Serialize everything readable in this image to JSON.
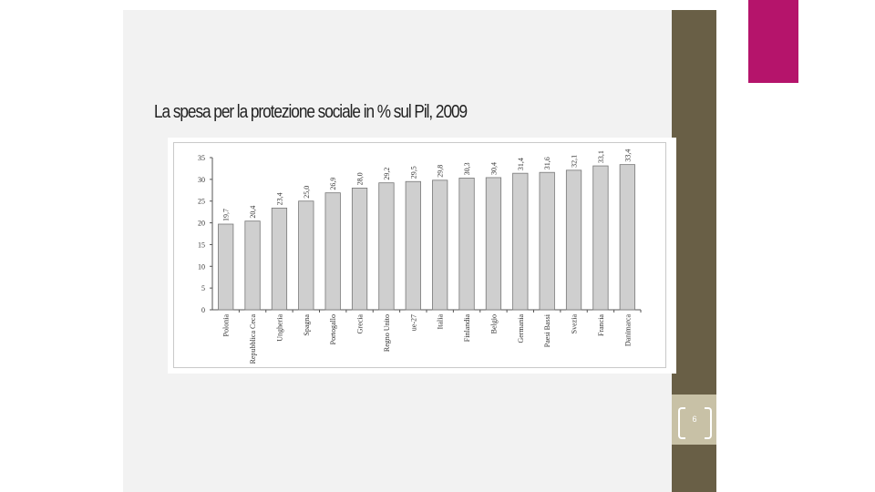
{
  "slide": {
    "title": "La spesa per la protezione sociale in % sul Pil, 2009",
    "page_number": "6"
  },
  "colors": {
    "sidebar": "#695f46",
    "accent": "#b5146b",
    "bar_fill": "#cfcfcf",
    "bar_stroke": "#777777"
  },
  "chart_data": {
    "type": "bar",
    "title": "",
    "xlabel": "",
    "ylabel": "",
    "ylim": [
      0,
      35
    ],
    "yticks": [
      "0",
      "5",
      "10",
      "15",
      "20",
      "25",
      "30",
      "35"
    ],
    "grid": false,
    "categories": [
      "Polonia",
      "Repubblica Ceca",
      "Ungheria",
      "Spagna",
      "Portogallo",
      "Grecia",
      "Regno Unito",
      "ue-27",
      "Italia",
      "Finlandia",
      "Belgio",
      "Germania",
      "Paesi Bassi",
      "Svezia",
      "Francia",
      "Danimarca"
    ],
    "values": [
      19.7,
      20.4,
      23.4,
      25.0,
      26.9,
      28.0,
      29.2,
      29.5,
      29.8,
      30.3,
      30.4,
      31.4,
      31.6,
      32.1,
      33.1,
      33.4
    ],
    "data_labels": [
      "19,7",
      "20,4",
      "23,4",
      "25,0",
      "26,9",
      "28,0",
      "29,2",
      "29,5",
      "29,8",
      "30,3",
      "30,4",
      "31,4",
      "31,6",
      "32,1",
      "33,1",
      "33,4"
    ]
  }
}
